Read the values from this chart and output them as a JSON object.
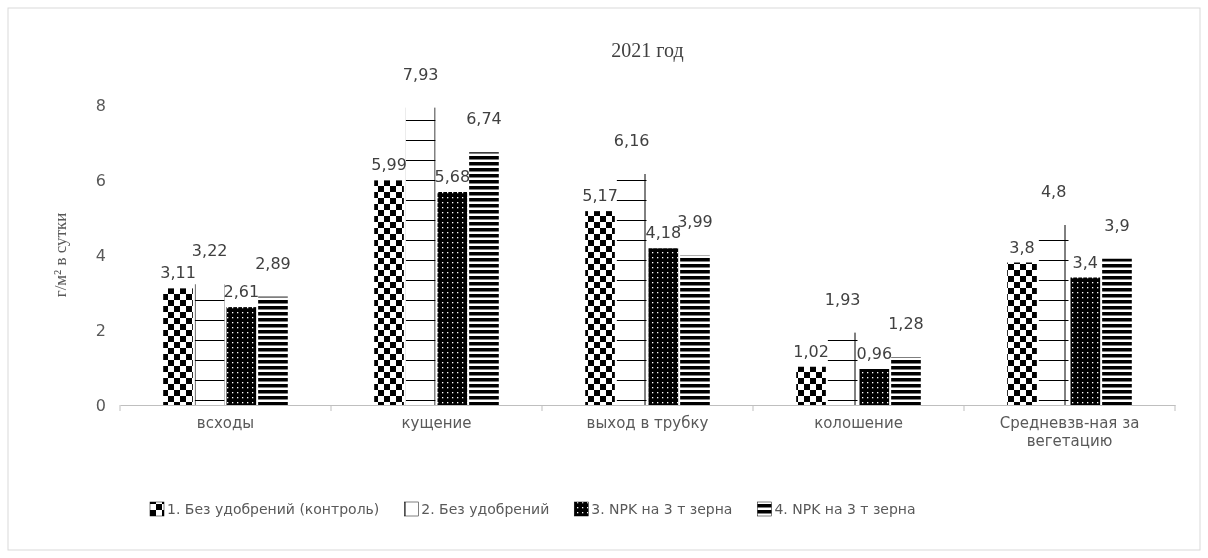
{
  "chart_data": {
    "type": "bar",
    "title": "2021 год",
    "ylabel": "г/м² в сутки",
    "categories": [
      "всходы",
      "кущение",
      "выход в трубку",
      "колошение",
      "Средневзв-ная за вегетацию"
    ],
    "series": [
      {
        "name": "1. Без удобрений (контроль)",
        "color": "#000000",
        "values": [
          3.11,
          5.99,
          5.17,
          1.02,
          3.8
        ],
        "value_labels": [
          "3,11",
          "5,99",
          "5,17",
          "1,02",
          "3,8"
        ]
      },
      {
        "name": "2. Без удобрений",
        "color": "#000000",
        "values": [
          3.22,
          7.93,
          6.16,
          1.93,
          4.8
        ],
        "value_labels": [
          "3,22",
          "7,93",
          "6,16",
          "1,93",
          "4,8"
        ]
      },
      {
        "name": "3. NPK на 3 т зерна",
        "color": "#000000",
        "values": [
          2.61,
          5.68,
          4.18,
          0.96,
          3.4
        ],
        "value_labels": [
          "2,61",
          "5,68",
          "4,18",
          "0,96",
          "3,4"
        ]
      },
      {
        "name": "4. NPK на 3 т зерна",
        "color": "#000000",
        "values": [
          2.89,
          6.74,
          3.99,
          1.28,
          3.9
        ],
        "value_labels": [
          "2,89",
          "6,74",
          "3,99",
          "1,28",
          "3,9"
        ]
      }
    ],
    "ylim": [
      0,
      8
    ],
    "yticks": [
      0,
      2,
      4,
      6,
      8
    ],
    "grid": false,
    "legend": "bottom"
  }
}
